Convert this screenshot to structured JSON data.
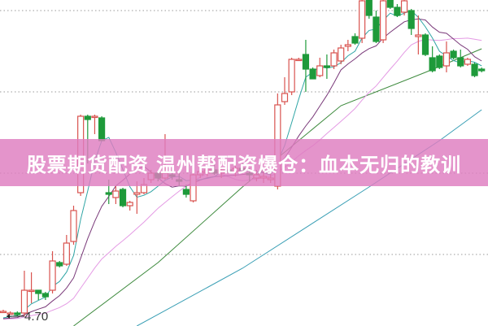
{
  "banner": {
    "title": "股票期货配资 温州帮配资爆仓：血本无归的教训"
  },
  "chart_data": {
    "type": "candlestick",
    "title": "",
    "xlabel": "",
    "ylabel": "",
    "ylim": [
      4.56,
      6.57
    ],
    "grid": {
      "style": "dotted",
      "levels": [
        5.0,
        5.5,
        6.0,
        6.5
      ]
    },
    "annotations": [
      {
        "text": "4.70",
        "arrow": "left"
      }
    ],
    "colors": {
      "up": "#d9534f",
      "down": "#1e9a3a",
      "ma5": "#2fa5a5",
      "ma10": "#7a3a7a",
      "ma20": "#e49ae4",
      "ma60": "#3d8a3d",
      "ma120": "#3a9fb5"
    },
    "candles": [
      [
        4.65,
        4.66,
        4.64,
        4.65
      ],
      [
        4.64,
        4.65,
        4.63,
        4.64
      ],
      [
        4.64,
        4.65,
        4.62,
        4.63
      ],
      [
        4.64,
        4.9,
        4.62,
        4.78
      ],
      [
        4.78,
        4.89,
        4.7,
        4.78
      ],
      [
        4.78,
        4.78,
        4.72,
        4.76
      ],
      [
        4.76,
        4.77,
        4.72,
        4.74
      ],
      [
        4.78,
        5.02,
        4.76,
        4.96
      ],
      [
        4.95,
        4.96,
        4.92,
        4.93
      ],
      [
        4.94,
        5.12,
        4.93,
        5.07
      ],
      [
        5.08,
        5.3,
        5.06,
        5.27
      ],
      [
        5.38,
        5.86,
        5.36,
        5.85
      ],
      [
        5.85,
        5.86,
        5.56,
        5.83
      ],
      [
        5.85,
        5.86,
        5.74,
        5.85
      ],
      [
        5.84,
        5.85,
        5.7,
        5.7
      ],
      [
        5.38,
        5.46,
        5.31,
        5.37
      ],
      [
        5.35,
        5.42,
        5.31,
        5.39
      ],
      [
        5.4,
        5.41,
        5.29,
        5.3
      ],
      [
        5.3,
        5.33,
        5.27,
        5.32
      ],
      [
        5.37,
        5.45,
        5.25,
        5.38
      ],
      [
        5.38,
        5.47,
        5.37,
        5.43
      ],
      [
        5.46,
        5.52,
        5.44,
        5.5
      ],
      [
        5.5,
        5.51,
        5.45,
        5.47
      ],
      [
        5.47,
        5.74,
        5.46,
        5.5
      ],
      [
        5.49,
        5.52,
        5.46,
        5.48
      ],
      [
        5.46,
        5.5,
        5.42,
        5.45
      ],
      [
        5.4,
        5.43,
        5.35,
        5.37
      ],
      [
        5.33,
        5.51,
        5.32,
        5.49
      ],
      [
        5.49,
        5.53,
        5.47,
        5.51
      ],
      [
        5.5,
        5.55,
        5.48,
        5.52
      ],
      [
        5.52,
        5.56,
        5.49,
        5.5
      ],
      [
        5.5,
        5.54,
        5.47,
        5.52
      ],
      [
        5.52,
        5.55,
        5.5,
        5.51
      ],
      [
        5.51,
        5.56,
        5.48,
        5.53
      ],
      [
        5.53,
        5.56,
        5.5,
        5.52
      ],
      [
        5.5,
        5.53,
        5.45,
        5.49
      ],
      [
        5.47,
        5.52,
        5.45,
        5.49
      ],
      [
        5.47,
        5.51,
        5.44,
        5.48
      ],
      [
        5.46,
        5.5,
        5.44,
        5.47
      ],
      [
        5.42,
        5.99,
        5.4,
        5.92
      ],
      [
        5.94,
        6.09,
        5.92,
        5.99
      ],
      [
        6.0,
        6.21,
        5.98,
        6.2
      ],
      [
        6.2,
        6.21,
        6.19,
        6.2
      ],
      [
        6.23,
        6.32,
        6.0,
        6.14
      ],
      [
        6.14,
        6.15,
        6.08,
        6.08
      ],
      [
        6.1,
        6.21,
        6.09,
        6.16
      ],
      [
        6.16,
        6.23,
        6.08,
        6.15
      ],
      [
        6.16,
        6.26,
        6.14,
        6.24
      ],
      [
        6.19,
        6.29,
        6.17,
        6.27
      ],
      [
        6.28,
        6.32,
        6.25,
        6.29
      ],
      [
        6.34,
        6.36,
        6.29,
        6.3
      ],
      [
        6.33,
        6.6,
        6.3,
        6.56
      ],
      [
        6.6,
        6.62,
        6.45,
        6.47
      ],
      [
        6.46,
        6.5,
        6.3,
        6.31
      ],
      [
        6.32,
        6.6,
        6.3,
        6.56
      ],
      [
        6.6,
        6.62,
        6.51,
        6.52
      ],
      [
        6.52,
        6.54,
        6.46,
        6.47
      ],
      [
        6.49,
        6.6,
        6.47,
        6.56
      ],
      [
        6.5,
        6.51,
        6.35,
        6.39
      ],
      [
        6.34,
        6.47,
        6.23,
        6.35
      ],
      [
        6.35,
        6.36,
        6.22,
        6.23
      ],
      [
        6.21,
        6.28,
        6.12,
        6.13
      ],
      [
        6.22,
        6.23,
        6.14,
        6.15
      ],
      [
        6.16,
        6.31,
        6.12,
        6.24
      ],
      [
        6.25,
        6.26,
        6.2,
        6.21
      ],
      [
        6.21,
        6.26,
        6.15,
        6.16
      ],
      [
        6.17,
        6.21,
        6.16,
        6.2
      ],
      [
        6.17,
        6.18,
        6.09,
        6.1
      ],
      [
        6.14,
        6.15,
        6.12,
        6.13
      ]
    ],
    "candle_fields": [
      "open",
      "high",
      "low",
      "close"
    ],
    "long_ma": [
      {
        "key": "ma60",
        "points": [
          [
            10,
            4.56
          ],
          [
            22,
            4.95
          ],
          [
            34,
            5.415
          ],
          [
            48,
            5.915
          ],
          [
            60,
            6.12
          ],
          [
            68,
            6.265
          ]
        ]
      },
      {
        "key": "ma120",
        "points": [
          [
            19,
            4.56
          ],
          [
            34,
            4.915
          ],
          [
            52,
            5.415
          ],
          [
            62,
            5.7
          ],
          [
            68,
            5.89
          ]
        ]
      }
    ]
  }
}
